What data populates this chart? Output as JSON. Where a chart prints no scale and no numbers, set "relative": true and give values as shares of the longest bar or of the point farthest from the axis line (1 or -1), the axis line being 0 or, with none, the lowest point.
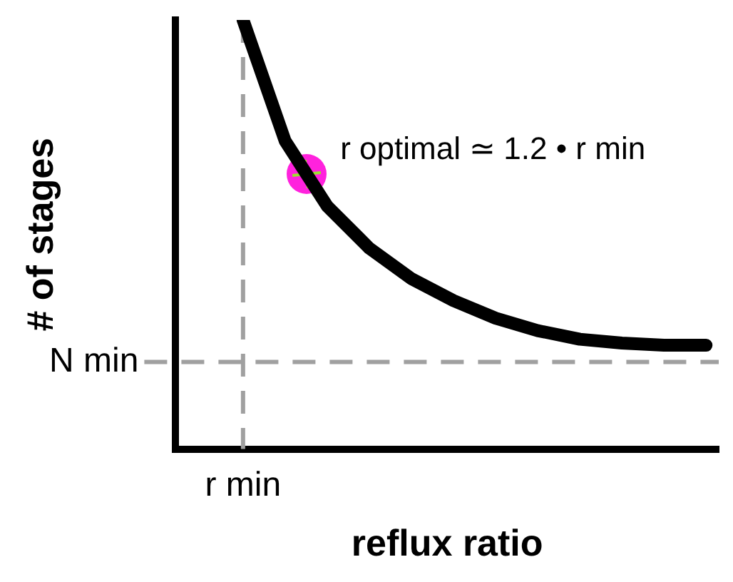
{
  "chart_data": {
    "type": "line",
    "xlabel": "reflux ratio",
    "ylabel": "# of stages",
    "relative": true,
    "categories": [
      null,
      null,
      null,
      null,
      null,
      null,
      null,
      null,
      null,
      null,
      null,
      null
    ],
    "series": [
      {
        "color": "#000000",
        "values": [
          1.0,
          0.718,
          0.566,
          0.468,
          0.397,
          0.346,
          0.305,
          0.276,
          0.256,
          0.247,
          0.242,
          0.242
        ]
      }
    ],
    "ref_lines": [
      {
        "axis": "x",
        "label": "r min",
        "color": "#a0a0a0",
        "line_style": "dashed"
      },
      {
        "axis": "y",
        "value": 0.203,
        "label": "N min",
        "color": "#a0a0a0",
        "line_style": "dashed"
      }
    ],
    "annotations": [
      "r optimal ≃ 1.2 • r min"
    ],
    "grid": false,
    "legend": false,
    "marker": "none",
    "line_style": "solid"
  }
}
